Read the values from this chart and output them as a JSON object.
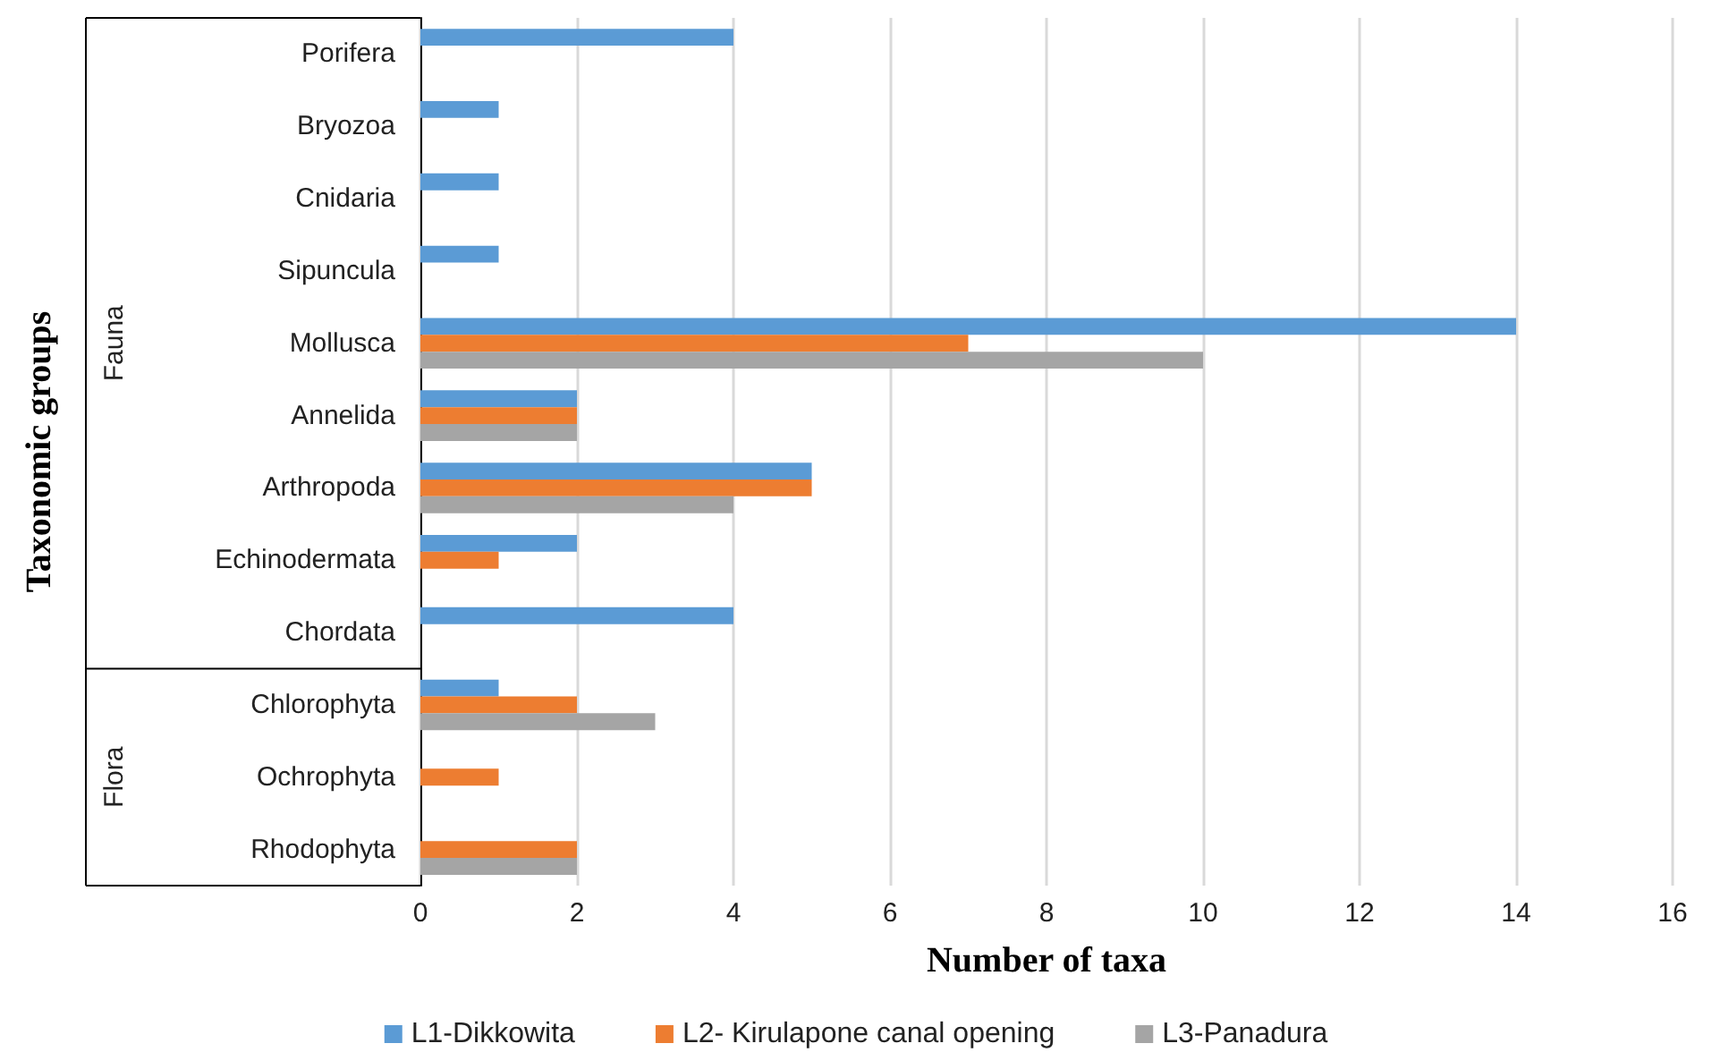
{
  "chart_data": {
    "type": "bar",
    "orientation": "horizontal",
    "xlabel": "Number of taxa",
    "ylabel": "Taxonomic groups",
    "categories": [
      "Porifera",
      "Bryozoa",
      "Cnidaria",
      "Sipuncula",
      "Mollusca",
      "Annelida",
      "Arthropoda",
      "Echinodermata",
      "Chordata",
      "Chlorophyta",
      "Ochrophyta",
      "Rhodophyta"
    ],
    "series": [
      {
        "name": "L1-Dikkowita",
        "color": "#5b9bd5",
        "values": [
          4,
          1,
          1,
          1,
          14,
          2,
          5,
          2,
          4,
          1,
          null,
          null
        ]
      },
      {
        "name": "L2- Kirulapone canal opening",
        "color": "#ed7d31",
        "values": [
          null,
          null,
          null,
          null,
          7,
          2,
          5,
          1,
          null,
          2,
          1,
          2
        ]
      },
      {
        "name": "L3-Panadura",
        "color": "#a5a5a5",
        "values": [
          null,
          null,
          null,
          null,
          10,
          2,
          4,
          null,
          null,
          3,
          null,
          2
        ]
      }
    ],
    "xlim": [
      0,
      16
    ],
    "xticks": [
      0,
      2,
      4,
      6,
      8,
      10,
      12,
      14,
      16
    ],
    "grid": "x",
    "legend": "bottom",
    "annotations": [
      "Fauna",
      "Flora"
    ]
  }
}
